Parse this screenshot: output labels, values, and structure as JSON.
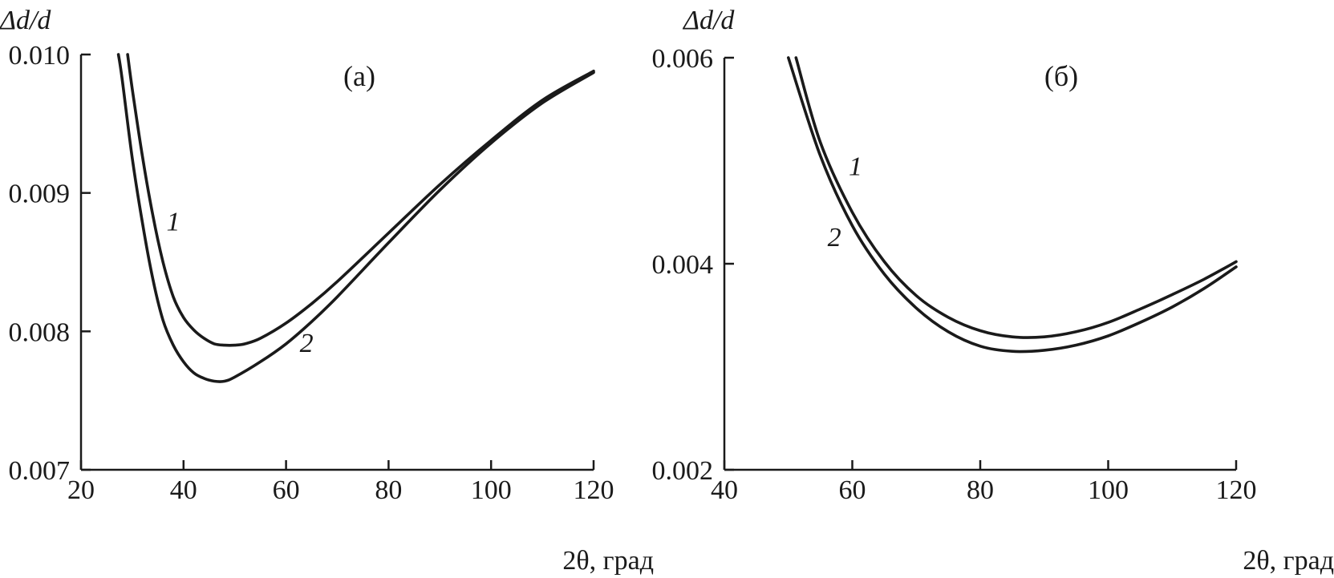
{
  "chart_data": [
    {
      "type": "line",
      "panel": "(а)",
      "ylabel": "Δd/d",
      "xlabel": "2θ, град",
      "xlim": [
        20,
        120
      ],
      "ylim": [
        0.007,
        0.01
      ],
      "xticks": [
        "20",
        "40",
        "60",
        "80",
        "100",
        "120"
      ],
      "yticks": [
        "0.007",
        "0.008",
        "0.009",
        "0.010"
      ],
      "series": [
        {
          "name": "1",
          "x": [
            29.1,
            30,
            32,
            34,
            36,
            38,
            40,
            42,
            44,
            46,
            48,
            50,
            52,
            55,
            60,
            65,
            70,
            80,
            90,
            100,
            110,
            120
          ],
          "y": [
            0.01,
            0.00975,
            0.00926,
            0.00884,
            0.0085,
            0.00825,
            0.0081,
            0.00801,
            0.00795,
            0.00791,
            0.0079,
            0.0079,
            0.00791,
            0.00795,
            0.00806,
            0.0082,
            0.00836,
            0.00871,
            0.00906,
            0.00938,
            0.00967,
            0.00988
          ]
        },
        {
          "name": "2",
          "x": [
            27.3,
            28,
            30,
            32,
            34,
            36,
            38,
            40,
            42,
            44,
            46,
            48,
            50,
            55,
            60,
            65,
            70,
            80,
            90,
            100,
            110,
            120
          ],
          "y": [
            0.01,
            0.00983,
            0.00925,
            0.00878,
            0.00838,
            0.00808,
            0.0079,
            0.00778,
            0.0077,
            0.00766,
            0.00764,
            0.00764,
            0.00767,
            0.00778,
            0.00791,
            0.00807,
            0.00825,
            0.00864,
            0.00902,
            0.00936,
            0.00965,
            0.00987
          ]
        }
      ],
      "annotations": [
        {
          "text": "1",
          "x": 38,
          "y": 0.00873
        },
        {
          "text": "2",
          "x": 64,
          "y": 0.00785
        }
      ]
    },
    {
      "type": "line",
      "panel": "(б)",
      "ylabel": "Δd/d",
      "xlabel": "2θ, град",
      "xlim": [
        40,
        120
      ],
      "ylim": [
        0.002,
        0.006
      ],
      "xticks": [
        "40",
        "60",
        "80",
        "100",
        "120"
      ],
      "yticks": [
        "0.002",
        "0.004",
        "0.006"
      ],
      "series": [
        {
          "name": "1",
          "x": [
            51.2,
            55,
            60,
            65,
            70,
            75,
            80,
            85,
            90,
            95,
            100,
            105,
            110,
            115,
            120
          ],
          "y": [
            0.006,
            0.00518,
            0.0045,
            0.00402,
            0.00369,
            0.00348,
            0.00335,
            0.00329,
            0.00329,
            0.00334,
            0.00343,
            0.00356,
            0.0037,
            0.00385,
            0.00402
          ]
        },
        {
          "name": "2",
          "x": [
            50,
            55,
            60,
            65,
            70,
            75,
            80,
            85,
            90,
            95,
            100,
            105,
            110,
            115,
            120
          ],
          "y": [
            0.006,
            0.00505,
            0.00437,
            0.0039,
            0.00357,
            0.00334,
            0.0032,
            0.00315,
            0.00316,
            0.00321,
            0.0033,
            0.00343,
            0.00358,
            0.00376,
            0.00397
          ]
        }
      ],
      "annotations": [
        {
          "text": "1",
          "x": 60.5,
          "y": 0.00486
        },
        {
          "text": "2",
          "x": 57.2,
          "y": 0.00417
        }
      ]
    }
  ]
}
